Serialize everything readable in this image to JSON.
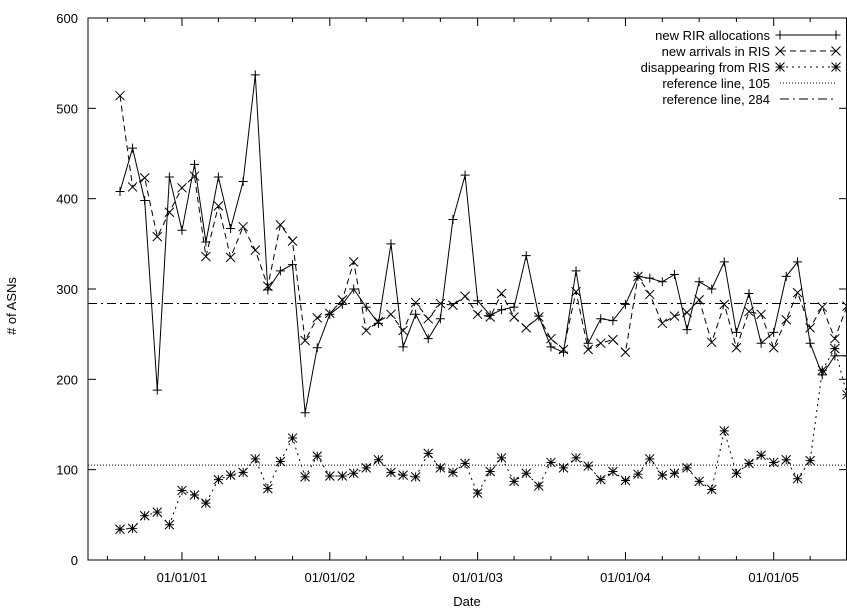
{
  "chart_data": {
    "type": "line",
    "title": "",
    "xlabel": "Date",
    "ylabel": "# of ASNs",
    "ylim": [
      0,
      600
    ],
    "xlim": [
      "2000-05-14",
      "2005-07-01"
    ],
    "yticks": [
      0,
      100,
      200,
      300,
      400,
      500,
      600
    ],
    "xticks": [
      {
        "date": "2001-01-01",
        "label": "01/01/01"
      },
      {
        "date": "2002-01-01",
        "label": "01/01/02"
      },
      {
        "date": "2003-01-01",
        "label": "01/01/03"
      },
      {
        "date": "2004-01-01",
        "label": "01/01/04"
      },
      {
        "date": "2005-01-01",
        "label": "01/01/05"
      }
    ],
    "legend_position": "top-right",
    "grid": false,
    "x": [
      "2000-08-01",
      "2000-09-01",
      "2000-10-01",
      "2000-11-01",
      "2000-12-01",
      "2001-01-01",
      "2001-02-01",
      "2001-03-01",
      "2001-04-01",
      "2001-05-01",
      "2001-06-01",
      "2001-07-01",
      "2001-08-01",
      "2001-09-01",
      "2001-10-01",
      "2001-11-01",
      "2001-12-01",
      "2002-01-01",
      "2002-02-01",
      "2002-03-01",
      "2002-04-01",
      "2002-05-01",
      "2002-06-01",
      "2002-07-01",
      "2002-08-01",
      "2002-09-01",
      "2002-10-01",
      "2002-11-01",
      "2002-12-01",
      "2003-01-01",
      "2003-02-01",
      "2003-03-01",
      "2003-04-01",
      "2003-05-01",
      "2003-06-01",
      "2003-07-01",
      "2003-08-01",
      "2003-09-01",
      "2003-10-01",
      "2003-11-01",
      "2003-12-01",
      "2004-01-01",
      "2004-02-01",
      "2004-03-01",
      "2004-04-01",
      "2004-05-01",
      "2004-06-01",
      "2004-07-01",
      "2004-08-01",
      "2004-09-01",
      "2004-10-01",
      "2004-11-01",
      "2004-12-01",
      "2005-01-01",
      "2005-02-01",
      "2005-03-01",
      "2005-04-01",
      "2005-05-01",
      "2005-06-01",
      "2005-07-01"
    ],
    "series": [
      {
        "name": "new RIR allocations",
        "style": "solid",
        "marker": "+",
        "values": [
          408,
          456,
          398,
          188,
          424,
          365,
          438,
          352,
          424,
          367,
          419,
          537,
          299,
          320,
          327,
          163,
          235,
          272,
          283,
          300,
          280,
          262,
          350,
          236,
          272,
          245,
          267,
          377,
          426,
          287,
          271,
          277,
          280,
          337,
          270,
          236,
          230,
          320,
          240,
          267,
          265,
          283,
          314,
          312,
          308,
          316,
          255,
          308,
          300,
          330,
          252,
          295,
          240,
          252,
          314,
          330,
          240,
          205,
          226,
          226
        ]
      },
      {
        "name": "new arrivals in RIS",
        "style": "dashed",
        "marker": "x",
        "values": [
          514,
          413,
          423,
          358,
          385,
          412,
          425,
          336,
          392,
          335,
          369,
          343,
          303,
          371,
          353,
          243,
          268,
          273,
          288,
          330,
          254,
          264,
          272,
          254,
          285,
          267,
          284,
          282,
          292,
          272,
          269,
          295,
          269,
          257,
          269,
          245,
          233,
          297,
          233,
          240,
          244,
          230,
          314,
          294,
          262,
          270,
          274,
          288,
          241,
          283,
          235,
          275,
          272,
          235,
          266,
          296,
          257,
          280,
          245,
          281
        ]
      },
      {
        "name": "disappearing from RIS",
        "style": "dotted",
        "marker": "*",
        "values": [
          34,
          35,
          49,
          53,
          39,
          77,
          72,
          63,
          89,
          94,
          97,
          112,
          79,
          109,
          135,
          92,
          115,
          93,
          93,
          96,
          102,
          111,
          97,
          94,
          92,
          118,
          102,
          97,
          107,
          74,
          98,
          113,
          87,
          96,
          82,
          108,
          102,
          113,
          104,
          89,
          98,
          88,
          95,
          112,
          94,
          96,
          102,
          87,
          78,
          143,
          96,
          107,
          116,
          108,
          111,
          90,
          110,
          210,
          234,
          183
        ]
      },
      {
        "name": "reference line, 105",
        "style": "fine-dotted",
        "constant": 105
      },
      {
        "name": "reference line, 284",
        "style": "dash-dot",
        "constant": 284
      }
    ]
  }
}
